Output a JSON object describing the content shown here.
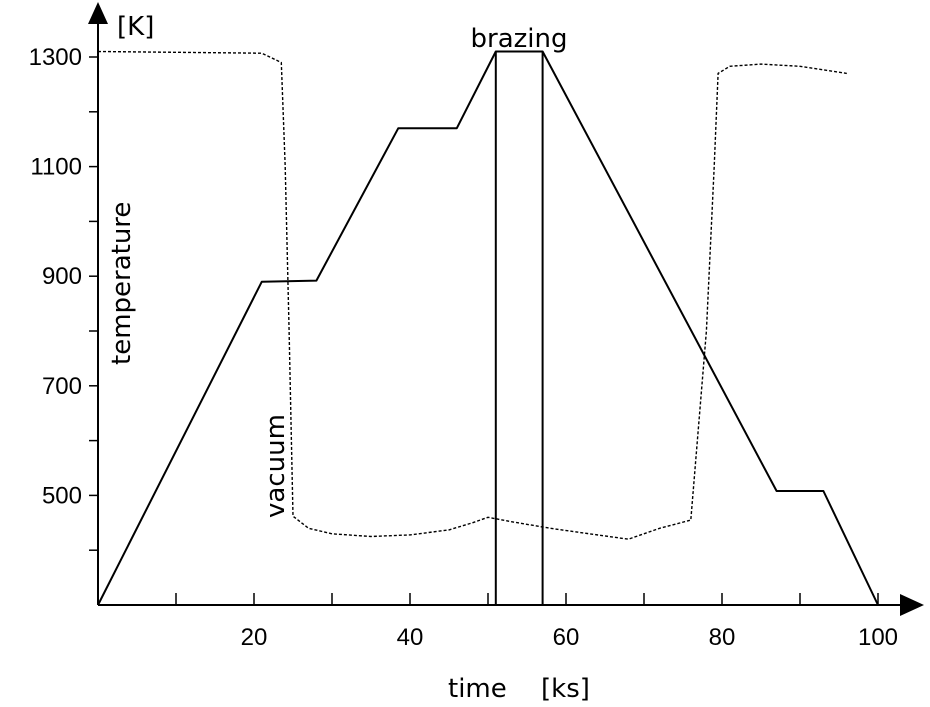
{
  "chart_data": {
    "type": "line",
    "title": "",
    "xlabel": "time",
    "xunit": "[ks]",
    "yunit": "[K]",
    "xlim": [
      0,
      100
    ],
    "ylim": [
      300,
      1300
    ],
    "x_ticks": [
      20,
      40,
      60,
      80,
      100
    ],
    "y_ticks": [
      500,
      700,
      900,
      1100,
      1300
    ],
    "grid": false,
    "series": [
      {
        "name": "temperature",
        "style": "solid",
        "points": [
          [
            0,
            300
          ],
          [
            21,
            890
          ],
          [
            28,
            892
          ],
          [
            38.5,
            1170
          ],
          [
            46,
            1170
          ],
          [
            51,
            1310
          ],
          [
            57,
            1310
          ],
          [
            87,
            508
          ],
          [
            93,
            508
          ],
          [
            100,
            300
          ]
        ]
      },
      {
        "name": "vacuum",
        "style": "dotted",
        "points": [
          [
            0,
            1310
          ],
          [
            21,
            1307
          ],
          [
            23.5,
            1290
          ],
          [
            24,
            1100
          ],
          [
            24.5,
            800
          ],
          [
            24.8,
            600
          ],
          [
            25,
            462
          ],
          [
            27,
            440
          ],
          [
            30,
            430
          ],
          [
            35,
            425
          ],
          [
            40,
            428
          ],
          [
            45,
            437
          ],
          [
            48,
            450
          ],
          [
            50,
            460
          ],
          [
            53,
            452
          ],
          [
            58,
            440
          ],
          [
            63,
            430
          ],
          [
            68,
            420
          ],
          [
            72,
            440
          ],
          [
            76,
            455
          ],
          [
            78,
            800
          ],
          [
            79,
            1100
          ],
          [
            79.5,
            1270
          ],
          [
            81,
            1283
          ],
          [
            85,
            1287
          ],
          [
            90,
            1283
          ],
          [
            96,
            1270
          ]
        ]
      }
    ],
    "annotations": [
      {
        "text": "brazing",
        "x_start": 51,
        "x_end": 57
      }
    ],
    "colors": {
      "line": "#000000",
      "background": "#ffffff"
    }
  }
}
